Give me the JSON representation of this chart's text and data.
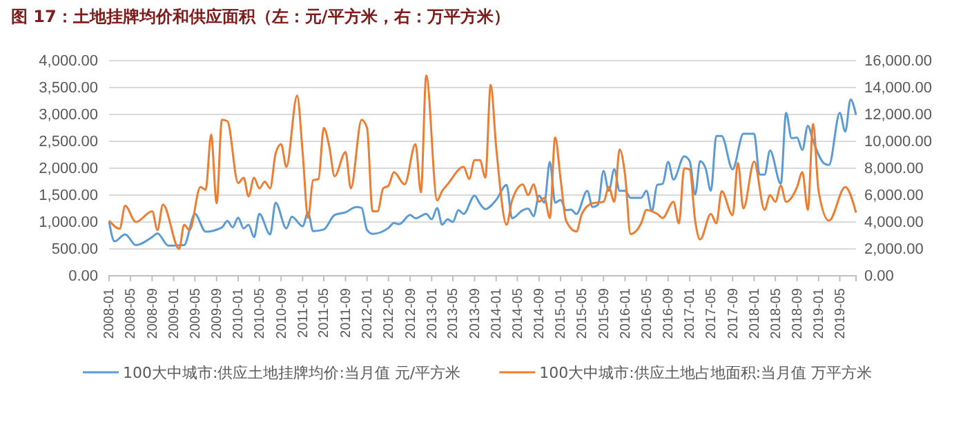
{
  "chart_data": {
    "type": "line",
    "title": "图 17：土地挂牌均价和供应面积（左：元/平方米，右：万平方米）",
    "xlim": [
      "2008-01",
      "2019-08"
    ],
    "xticks": [
      "2008-01",
      "2008-05",
      "2008-09",
      "2009-01",
      "2009-05",
      "2009-09",
      "2010-01",
      "2010-05",
      "2010-09",
      "2011-01",
      "2011-05",
      "2011-09",
      "2012-01",
      "2012-05",
      "2012-09",
      "2013-01",
      "2013-05",
      "2013-09",
      "2014-01",
      "2014-05",
      "2014-09",
      "2015-01",
      "2015-05",
      "2015-09",
      "2016-01",
      "2016-05",
      "2016-09",
      "2017-01",
      "2017-05",
      "2017-09",
      "2018-01",
      "2018-05",
      "2018-09",
      "2019-01",
      "2019-05"
    ],
    "ylim": [
      0,
      4000
    ],
    "yticks": [
      {
        "value": 0,
        "label": "0.00"
      },
      {
        "value": 500,
        "label": "500.00"
      },
      {
        "value": 1000,
        "label": "1,000.00"
      },
      {
        "value": 1500,
        "label": "1,500.00"
      },
      {
        "value": 2000,
        "label": "2,000.00"
      },
      {
        "value": 2500,
        "label": "2,500.00"
      },
      {
        "value": 3000,
        "label": "3,000.00"
      },
      {
        "value": 3500,
        "label": "3,500.00"
      },
      {
        "value": 4000,
        "label": "4,000.00"
      }
    ],
    "y2lim": [
      0,
      16000
    ],
    "y2ticks": [
      {
        "value": 0,
        "label": "0.00"
      },
      {
        "value": 2000,
        "label": "2,000.00"
      },
      {
        "value": 4000,
        "label": "4,000.00"
      },
      {
        "value": 6000,
        "label": "6,000.00"
      },
      {
        "value": 8000,
        "label": "8,000.00"
      },
      {
        "value": 10000,
        "label": "10,000.00"
      },
      {
        "value": 12000,
        "label": "12,000.00"
      },
      {
        "value": 14000,
        "label": "14,000.00"
      },
      {
        "value": 16000,
        "label": "16,000.00"
      }
    ],
    "grid": "y",
    "legend": "bottom",
    "marker": "none",
    "line_style": "solid",
    "series": [
      {
        "name": "100大中城市:供应土地挂牌均价:当月值 元/平方米",
        "color": "#5b9bd5",
        "axis": "y",
        "x": [
          "2008-01",
          "2008-02",
          "2008-04",
          "2008-06",
          "2008-09",
          "2008-10",
          "2008-12",
          "2009-03",
          "2009-05",
          "2009-07",
          "2009-10",
          "2009-11",
          "2009-12",
          "2010-01",
          "2010-02",
          "2010-03",
          "2010-04",
          "2010-05",
          "2010-07",
          "2010-08",
          "2010-10",
          "2010-11",
          "2011-01",
          "2011-02",
          "2011-03",
          "2011-05",
          "2011-07",
          "2011-09",
          "2011-11",
          "2011-12",
          "2012-01",
          "2012-02",
          "2012-05",
          "2012-06",
          "2012-07",
          "2012-09",
          "2012-10",
          "2012-12",
          "2013-01",
          "2013-02",
          "2013-03",
          "2013-04",
          "2013-05",
          "2013-06",
          "2013-07",
          "2013-09",
          "2013-10",
          "2013-11",
          "2014-01",
          "2014-03",
          "2014-04",
          "2014-06",
          "2014-07",
          "2014-08",
          "2014-09",
          "2014-10",
          "2014-11",
          "2014-12",
          "2015-01",
          "2015-02",
          "2015-03",
          "2015-04",
          "2015-06",
          "2015-07",
          "2015-08",
          "2015-09",
          "2015-10",
          "2015-11",
          "2015-12",
          "2016-01",
          "2016-02",
          "2016-04",
          "2016-05",
          "2016-06",
          "2016-07",
          "2016-08",
          "2016-09",
          "2016-10",
          "2016-12",
          "2017-01",
          "2017-02",
          "2017-03",
          "2017-04",
          "2017-05",
          "2017-06",
          "2017-07",
          "2017-09",
          "2017-11",
          "2018-01",
          "2018-02",
          "2018-03",
          "2018-04",
          "2018-06",
          "2018-07",
          "2018-08",
          "2018-09",
          "2018-10",
          "2018-11",
          "2018-12",
          "2019-02",
          "2019-03",
          "2019-05",
          "2019-06",
          "2019-07",
          "2019-08"
        ],
        "values": [
          1010,
          640,
          770,
          570,
          720,
          790,
          560,
          570,
          1150,
          820,
          900,
          1020,
          900,
          1080,
          880,
          950,
          720,
          1150,
          770,
          1360,
          880,
          1100,
          920,
          1180,
          830,
          860,
          1130,
          1180,
          1280,
          1260,
          850,
          780,
          890,
          980,
          960,
          1130,
          1070,
          1150,
          1050,
          1260,
          950,
          1050,
          1000,
          1220,
          1150,
          1490,
          1340,
          1240,
          1410,
          1690,
          1070,
          1220,
          1250,
          1110,
          1490,
          1360,
          2120,
          1360,
          1410,
          1220,
          1230,
          1150,
          1580,
          1280,
          1320,
          1950,
          1580,
          1980,
          1580,
          1580,
          1450,
          1450,
          1580,
          1200,
          1690,
          1710,
          2120,
          1790,
          2220,
          2130,
          1510,
          2130,
          2000,
          1580,
          2600,
          2600,
          1980,
          2640,
          2640,
          1880,
          1880,
          2330,
          1710,
          3030,
          2560,
          2570,
          2340,
          2790,
          2510,
          2090,
          2060,
          3030,
          2680,
          3280,
          2990
        ]
      },
      {
        "name": "100大中城市:供应土地占地面积:当月值 万平方米",
        "color": "#ed7d31",
        "axis": "y2",
        "x": [
          "2008-01",
          "2008-03",
          "2008-04",
          "2008-06",
          "2008-09",
          "2008-10",
          "2008-11",
          "2009-02",
          "2009-03",
          "2009-04",
          "2009-06",
          "2009-07",
          "2009-08",
          "2009-09",
          "2009-10",
          "2009-11",
          "2010-01",
          "2010-02",
          "2010-03",
          "2010-04",
          "2010-05",
          "2010-06",
          "2010-07",
          "2010-08",
          "2010-09",
          "2010-10",
          "2010-12",
          "2011-01",
          "2011-02",
          "2011-03",
          "2011-04",
          "2011-05",
          "2011-06",
          "2011-07",
          "2011-09",
          "2011-10",
          "2011-12",
          "2012-01",
          "2012-02",
          "2012-03",
          "2012-04",
          "2012-05",
          "2012-06",
          "2012-08",
          "2012-10",
          "2012-11",
          "2012-12",
          "2013-02",
          "2013-03",
          "2013-04",
          "2013-07",
          "2013-08",
          "2013-09",
          "2013-10",
          "2013-11",
          "2013-12",
          "2014-01",
          "2014-03",
          "2014-04",
          "2014-06",
          "2014-07",
          "2014-08",
          "2014-09",
          "2014-10",
          "2014-11",
          "2014-12",
          "2015-01",
          "2015-02",
          "2015-04",
          "2015-05",
          "2015-07",
          "2015-09",
          "2015-10",
          "2015-11",
          "2015-12",
          "2016-01",
          "2016-02",
          "2016-04",
          "2016-05",
          "2016-07",
          "2016-08",
          "2016-10",
          "2016-11",
          "2016-12",
          "2017-01",
          "2017-02",
          "2017-03",
          "2017-05",
          "2017-06",
          "2017-07",
          "2017-09",
          "2017-10",
          "2017-11",
          "2018-01",
          "2018-03",
          "2018-04",
          "2018-05",
          "2018-06",
          "2018-07",
          "2018-09",
          "2018-10",
          "2018-11",
          "2018-12",
          "2019-01",
          "2019-03",
          "2019-06",
          "2019-08"
        ],
        "values": [
          4100,
          3500,
          5200,
          4000,
          4800,
          3400,
          5300,
          2000,
          3800,
          3400,
          6600,
          6400,
          10500,
          5400,
          11600,
          11500,
          6900,
          7300,
          5900,
          7300,
          6500,
          7000,
          6500,
          9100,
          9800,
          8100,
          13400,
          9200,
          4300,
          7100,
          7200,
          11000,
          9600,
          7400,
          9200,
          6500,
          11600,
          11000,
          4800,
          4800,
          6500,
          6700,
          7700,
          6800,
          9800,
          6200,
          14900,
          5600,
          6300,
          6800,
          8100,
          7200,
          8600,
          8600,
          7300,
          14200,
          9600,
          3800,
          5600,
          6800,
          6000,
          6800,
          5500,
          5800,
          4300,
          10300,
          7200,
          4100,
          3300,
          4600,
          5400,
          5500,
          6600,
          5500,
          9400,
          7500,
          3100,
          3900,
          4900,
          4600,
          4300,
          5500,
          3900,
          8000,
          7900,
          4100,
          2700,
          4600,
          3900,
          6300,
          4500,
          8400,
          5000,
          8500,
          4900,
          6000,
          5500,
          6700,
          5500,
          6600,
          7700,
          4900,
          11300,
          6300,
          4100,
          6600,
          4700
        ]
      }
    ]
  }
}
